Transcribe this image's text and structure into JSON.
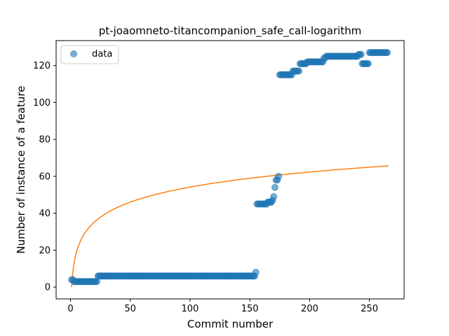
{
  "chart_data": {
    "type": "scatter",
    "title": "pt-joaomneto-titancompanion_safe_call-logarithm",
    "xlabel": "Commit number",
    "ylabel": "Number of instance of a feature",
    "xlim": [
      -12,
      279
    ],
    "ylim": [
      -6.4,
      133.5
    ],
    "xticks": [
      0,
      50,
      100,
      150,
      200,
      250
    ],
    "yticks": [
      0,
      20,
      40,
      60,
      80,
      100,
      120
    ],
    "grid": false,
    "legend_position": "top-left",
    "colors": {
      "data": "#1f77b4",
      "fit": "#ff7f0e"
    },
    "series": [
      {
        "name": "data",
        "kind": "scatter",
        "segments": [
          {
            "x_start": 1,
            "x_end": 2,
            "y": 4
          },
          {
            "x_start": 3,
            "x_end": 22,
            "y": 3
          },
          {
            "x_start": 23,
            "x_end": 154,
            "y": 6
          }
        ],
        "points": [
          [
            155,
            8
          ],
          [
            156,
            45
          ],
          [
            157,
            45
          ],
          [
            158,
            45
          ],
          [
            159,
            45
          ],
          [
            160,
            45
          ],
          [
            161,
            45
          ],
          [
            162,
            45
          ],
          [
            163,
            45
          ],
          [
            164,
            45
          ],
          [
            165,
            46
          ],
          [
            166,
            46
          ],
          [
            167,
            46
          ],
          [
            168,
            46
          ],
          [
            169,
            47
          ],
          [
            170,
            49
          ],
          [
            171,
            54
          ],
          [
            172,
            58
          ],
          [
            173,
            58
          ],
          [
            174,
            60
          ],
          [
            175,
            115
          ],
          [
            176,
            115
          ],
          [
            177,
            115
          ],
          [
            178,
            115
          ],
          [
            179,
            115
          ],
          [
            180,
            115
          ],
          [
            181,
            115
          ],
          [
            182,
            115
          ],
          [
            183,
            115
          ],
          [
            184,
            115
          ],
          [
            185,
            115
          ],
          [
            186,
            117
          ],
          [
            187,
            117
          ],
          [
            188,
            117
          ],
          [
            189,
            117
          ],
          [
            190,
            117
          ],
          [
            191,
            117
          ],
          [
            192,
            121
          ],
          [
            193,
            121
          ],
          [
            194,
            121
          ],
          [
            195,
            121
          ],
          [
            196,
            121
          ],
          [
            197,
            121
          ],
          [
            198,
            122
          ],
          [
            199,
            122
          ],
          [
            200,
            122
          ],
          [
            201,
            122
          ],
          [
            202,
            122
          ],
          [
            203,
            122
          ],
          [
            204,
            122
          ],
          [
            205,
            122
          ],
          [
            206,
            122
          ],
          [
            207,
            122
          ],
          [
            208,
            122
          ],
          [
            209,
            122
          ],
          [
            210,
            122
          ],
          [
            211,
            122
          ],
          [
            212,
            124
          ],
          [
            213,
            124
          ],
          [
            214,
            125
          ],
          [
            215,
            125
          ],
          [
            216,
            125
          ],
          [
            217,
            125
          ],
          [
            218,
            125
          ],
          [
            219,
            125
          ],
          [
            220,
            125
          ],
          [
            221,
            125
          ],
          [
            222,
            125
          ],
          [
            223,
            125
          ],
          [
            224,
            125
          ],
          [
            225,
            125
          ],
          [
            226,
            125
          ],
          [
            227,
            125
          ],
          [
            228,
            125
          ],
          [
            229,
            125
          ],
          [
            230,
            125
          ],
          [
            231,
            125
          ],
          [
            232,
            125
          ],
          [
            233,
            125
          ],
          [
            234,
            125
          ],
          [
            235,
            125
          ],
          [
            236,
            125
          ],
          [
            237,
            125
          ],
          [
            238,
            125
          ],
          [
            239,
            125
          ],
          [
            240,
            125
          ],
          [
            241,
            126
          ],
          [
            242,
            126
          ],
          [
            243,
            126
          ],
          [
            244,
            121
          ],
          [
            245,
            121
          ],
          [
            246,
            121
          ],
          [
            247,
            121
          ],
          [
            248,
            121
          ],
          [
            249,
            121
          ],
          [
            250,
            127
          ],
          [
            251,
            127
          ],
          [
            252,
            127
          ],
          [
            253,
            127
          ],
          [
            254,
            127
          ],
          [
            255,
            127
          ],
          [
            256,
            127
          ],
          [
            257,
            127
          ],
          [
            258,
            127
          ],
          [
            259,
            127
          ],
          [
            260,
            127
          ],
          [
            261,
            127
          ],
          [
            262,
            127
          ],
          [
            263,
            127
          ],
          [
            264,
            127
          ],
          [
            265,
            127
          ]
        ]
      },
      {
        "kind": "line",
        "formula": "y = a * ln(x)",
        "a": 11.76,
        "x_range": [
          1,
          266
        ]
      }
    ]
  }
}
